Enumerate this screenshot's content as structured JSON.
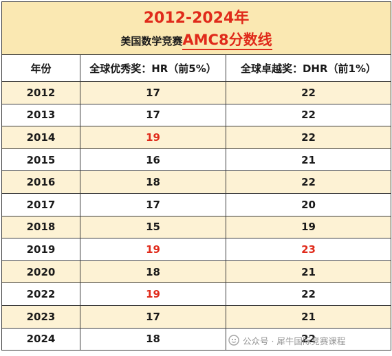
{
  "title": {
    "year_range": "2012-2024年",
    "subtitle_plain": "美国数学竞赛",
    "subtitle_highlight": "AMC8分数线"
  },
  "columns": [
    "年份",
    "全球优秀奖：HR（前5%）",
    "全球卓越奖：DHR（前1%）"
  ],
  "rows": [
    {
      "year": "2012",
      "hr": "17",
      "dhr": "22",
      "hr_highlight": false,
      "dhr_highlight": false
    },
    {
      "year": "2013",
      "hr": "17",
      "dhr": "22",
      "hr_highlight": false,
      "dhr_highlight": false
    },
    {
      "year": "2014",
      "hr": "19",
      "dhr": "22",
      "hr_highlight": true,
      "dhr_highlight": false
    },
    {
      "year": "2015",
      "hr": "16",
      "dhr": "21",
      "hr_highlight": false,
      "dhr_highlight": false
    },
    {
      "year": "2016",
      "hr": "18",
      "dhr": "22",
      "hr_highlight": false,
      "dhr_highlight": false
    },
    {
      "year": "2017",
      "hr": "17",
      "dhr": "20",
      "hr_highlight": false,
      "dhr_highlight": false
    },
    {
      "year": "2018",
      "hr": "15",
      "dhr": "19",
      "hr_highlight": false,
      "dhr_highlight": false
    },
    {
      "year": "2019",
      "hr": "19",
      "dhr": "23",
      "hr_highlight": true,
      "dhr_highlight": true
    },
    {
      "year": "2020",
      "hr": "18",
      "dhr": "21",
      "hr_highlight": false,
      "dhr_highlight": false
    },
    {
      "year": "2022",
      "hr": "19",
      "dhr": "22",
      "hr_highlight": true,
      "dhr_highlight": false
    },
    {
      "year": "2023",
      "hr": "17",
      "dhr": "21",
      "hr_highlight": false,
      "dhr_highlight": false
    },
    {
      "year": "2024",
      "hr": "18",
      "dhr": "22",
      "hr_highlight": false,
      "dhr_highlight": false
    }
  ],
  "colors": {
    "highlight_red": "#e02a1a",
    "header_band": "#fae8b2",
    "row_shade": "#fdf2d4"
  },
  "watermark": {
    "icon": "wechat-official-account-icon",
    "text": "公众号 · 犀牛国际竞赛课程"
  }
}
